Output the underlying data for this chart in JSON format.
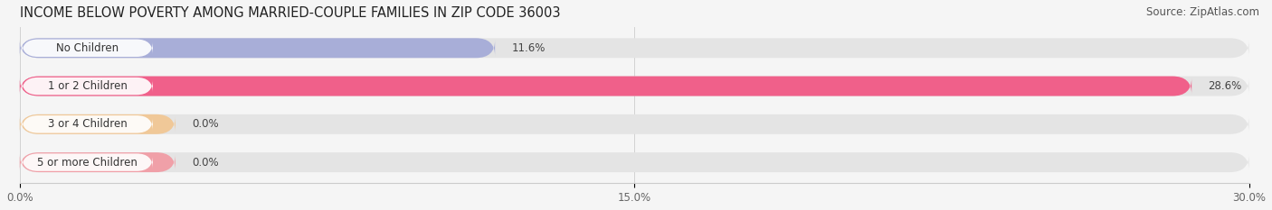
{
  "title": "INCOME BELOW POVERTY AMONG MARRIED-COUPLE FAMILIES IN ZIP CODE 36003",
  "source": "Source: ZipAtlas.com",
  "categories": [
    "No Children",
    "1 or 2 Children",
    "3 or 4 Children",
    "5 or more Children"
  ],
  "values": [
    11.6,
    28.6,
    0.0,
    0.0
  ],
  "bar_colors": [
    "#a8aed8",
    "#f0608a",
    "#f0c898",
    "#f0a0a8"
  ],
  "xlim": [
    0,
    30.0
  ],
  "xticks": [
    0.0,
    15.0,
    30.0
  ],
  "xtick_labels": [
    "0.0%",
    "15.0%",
    "30.0%"
  ],
  "bar_height": 0.52,
  "background_color": "#f5f5f5",
  "title_fontsize": 10.5,
  "source_fontsize": 8.5,
  "label_fontsize": 8.5,
  "value_fontsize": 8.5
}
